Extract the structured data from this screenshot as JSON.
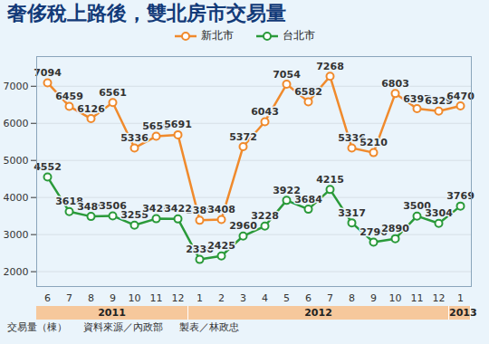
{
  "chart_data": {
    "type": "line",
    "title": "奢侈稅上路後，雙北房市交易量",
    "y_label": "交易量（棟）",
    "source": "資料來源／內政部",
    "credit": "製表／林政忠",
    "categories": [
      "6",
      "7",
      "8",
      "9",
      "10",
      "11",
      "12",
      "1",
      "2",
      "3",
      "4",
      "5",
      "6",
      "7",
      "8",
      "9",
      "10",
      "11",
      "12",
      "1"
    ],
    "x_group": [
      "2011",
      "2011",
      "2011",
      "2011",
      "2011",
      "2011",
      "2011",
      "2012",
      "2012",
      "2012",
      "2012",
      "2012",
      "2012",
      "2012",
      "2012",
      "2012",
      "2012",
      "2012",
      "2012",
      "2013"
    ],
    "series": [
      {
        "name": "新北市",
        "color": "#f08a2c",
        "marker": "circle",
        "line_style": "solid",
        "values": [
          7094,
          6459,
          6126,
          6561,
          5336,
          5650,
          5691,
          3385,
          3408,
          5372,
          6043,
          7054,
          6582,
          7268,
          5336,
          5210,
          6803,
          6397,
          6329,
          6470
        ]
      },
      {
        "name": "台北市",
        "color": "#2a9a3a",
        "marker": "circle",
        "line_style": "solid",
        "values": [
          4552,
          3618,
          3489,
          3506,
          3255,
          3428,
          3422,
          2330,
          2425,
          2960,
          3228,
          3922,
          3684,
          4215,
          3317,
          2796,
          2890,
          3500,
          3304,
          3769
        ]
      }
    ],
    "ylim": [
      1600,
      7800
    ],
    "yticks": [
      2000,
      3000,
      4000,
      5000,
      6000,
      7000
    ],
    "grid": true,
    "legend": "top",
    "data_labels": true
  }
}
